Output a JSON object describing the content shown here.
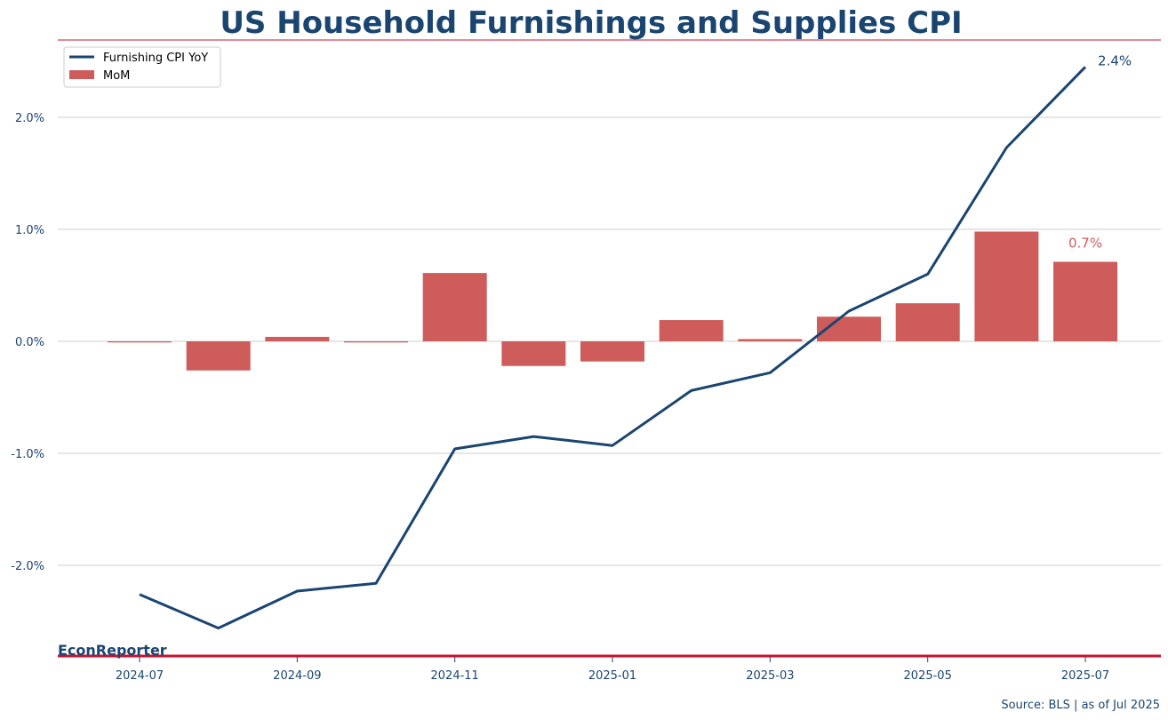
{
  "title": "US Household Furnishings and Supplies CPI",
  "brand": "EconReporter",
  "source": "Source: BLS | as of Jul 2025",
  "colors": {
    "navy": "#1a4570",
    "bar": "#cd5c5a",
    "accent": "#c8102e",
    "grid": "#cccccc"
  },
  "chart_data": {
    "type": "bar",
    "categories": [
      "2024-07",
      "2024-08",
      "2024-09",
      "2024-10",
      "2024-11",
      "2024-12",
      "2025-01",
      "2025-02",
      "2025-03",
      "2025-04",
      "2025-05",
      "2025-06",
      "2025-07"
    ],
    "x_tick_labels": [
      "2024-07",
      "2024-09",
      "2024-11",
      "2025-01",
      "2025-03",
      "2025-05",
      "2025-07"
    ],
    "y_ticks": [
      -2,
      -1,
      0,
      1,
      2
    ],
    "y_tick_labels": [
      "-2.0%",
      "-1.0%",
      "0.0%",
      "1.0%",
      "2.0%"
    ],
    "ylim": [
      -2.8,
      2.5
    ],
    "grid": true,
    "legend_position": "top-left",
    "series": [
      {
        "name": "Furnishing CPI YoY",
        "type": "line",
        "values": [
          -2.26,
          -2.56,
          -2.23,
          -2.16,
          -0.96,
          -0.85,
          -0.93,
          -0.44,
          -0.28,
          0.27,
          0.6,
          1.73,
          2.45
        ]
      },
      {
        "name": "MoM",
        "type": "bar",
        "values": [
          -0.01,
          -0.26,
          0.04,
          -0.01,
          0.61,
          -0.22,
          -0.18,
          0.19,
          0.02,
          0.22,
          0.34,
          0.98,
          0.71
        ]
      }
    ],
    "annotations": [
      {
        "series": "Furnishing CPI YoY",
        "label": "2.4%"
      },
      {
        "series": "MoM",
        "label": "0.7%"
      }
    ]
  }
}
